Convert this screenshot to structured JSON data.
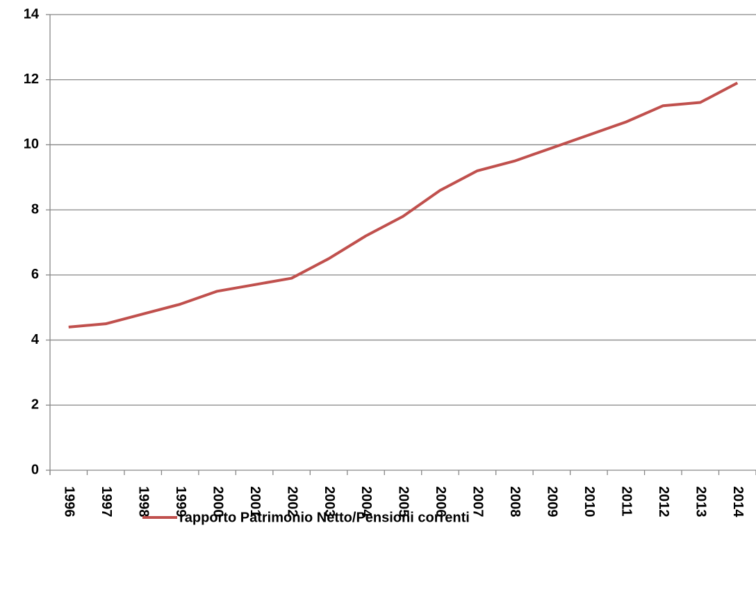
{
  "chart_data": {
    "type": "line",
    "categories": [
      "1996",
      "1997",
      "1998",
      "1999",
      "2000",
      "2001",
      "2002",
      "2003",
      "2004",
      "2005",
      "2006",
      "2007",
      "2008",
      "2009",
      "2010",
      "2011",
      "2012",
      "2013",
      "2014"
    ],
    "series": [
      {
        "name": "rapporto Patrimonio Netto/Pensioni correnti",
        "color": "#c0504d",
        "values": [
          4.4,
          4.5,
          4.8,
          5.1,
          5.5,
          5.7,
          5.9,
          6.5,
          7.2,
          7.8,
          8.6,
          9.2,
          9.5,
          9.9,
          10.3,
          10.7,
          11.2,
          11.3,
          11.9
        ]
      }
    ],
    "ylim": [
      0,
      14
    ],
    "yticks": [
      0,
      2,
      4,
      6,
      8,
      10,
      12,
      14
    ],
    "grid": true,
    "legend": "bottom"
  }
}
